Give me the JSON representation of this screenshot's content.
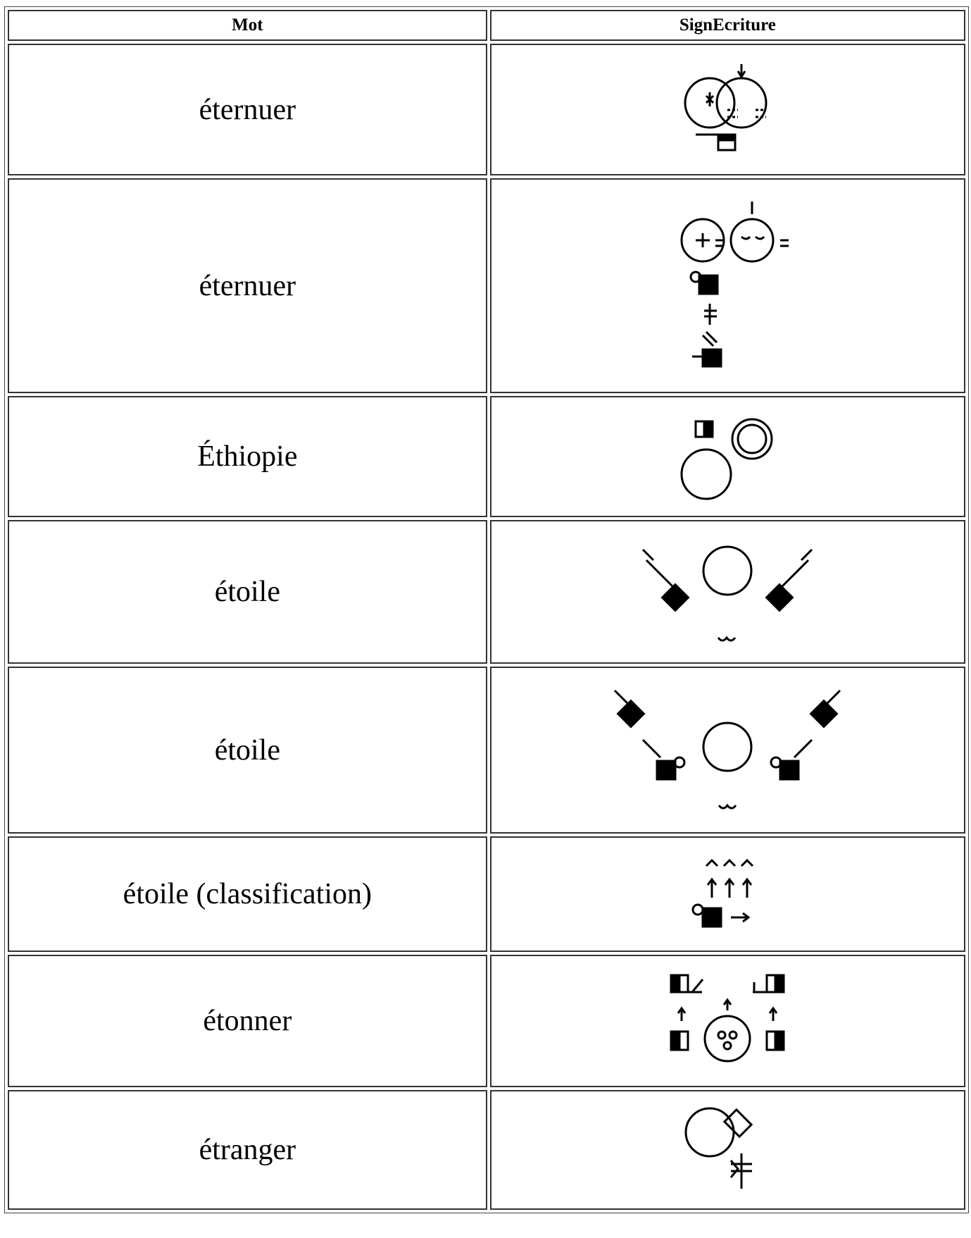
{
  "table": {
    "headers": [
      "Mot",
      "SignEcriture"
    ],
    "rows": [
      "éternuer",
      "éternuer",
      "Éthiopie",
      "étoile",
      "étoile",
      "étoile (classification)",
      "étonner",
      "étranger"
    ]
  }
}
